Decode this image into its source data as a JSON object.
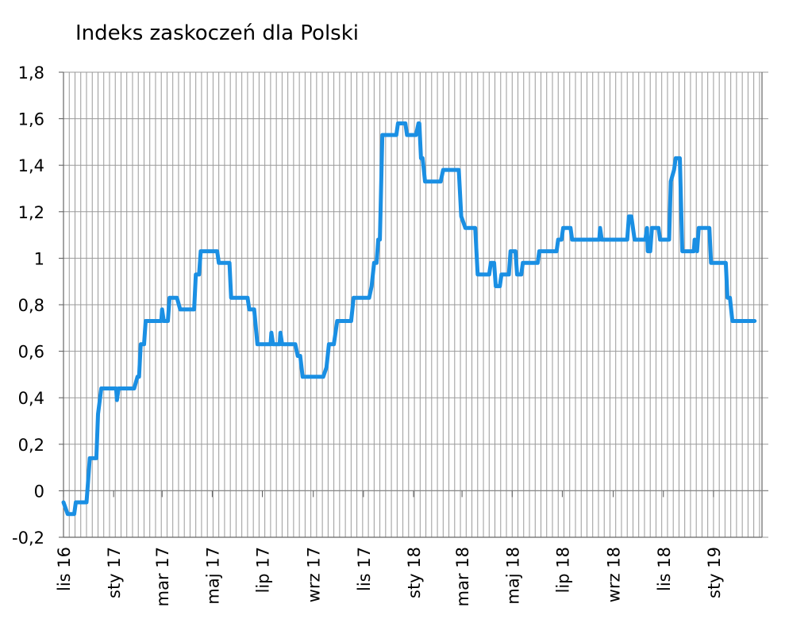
{
  "chart_data": {
    "type": "line",
    "title": "Indeks zaskoczeń dla Polski",
    "xlabel": "",
    "ylabel": "",
    "ylim": [
      -0.2,
      1.8
    ],
    "yticks": [
      "-0,2",
      "0",
      "0,2",
      "0,4",
      "0,6",
      "0,8",
      "1",
      "1,2",
      "1,4",
      "1,6",
      "1,8"
    ],
    "xticks": [
      "lis 16",
      "sty 17",
      "mar 17",
      "maj 17",
      "lip 17",
      "wrz 17",
      "lis 17",
      "sty 18",
      "mar 18",
      "maj 18",
      "lip 18",
      "wrz 18",
      "lis 18",
      "sty 19"
    ],
    "x_range_months": [
      "2016-11",
      "2019-02"
    ],
    "grid": "vertical weekly + horizontal major",
    "line_color": "#1a8fe3",
    "series": [
      {
        "points": [
          [
            "2016-11-01",
            -0.05
          ],
          [
            "2016-11-06",
            -0.1
          ],
          [
            "2016-11-14",
            -0.1
          ],
          [
            "2016-11-16",
            -0.05
          ],
          [
            "2016-11-29",
            -0.05
          ],
          [
            "2016-12-03",
            0.14
          ],
          [
            "2016-12-11",
            0.14
          ],
          [
            "2016-12-13",
            0.33
          ],
          [
            "2016-12-17",
            0.44
          ],
          [
            "2017-01-04",
            0.44
          ],
          [
            "2017-01-05",
            0.39
          ],
          [
            "2017-01-07",
            0.44
          ],
          [
            "2017-01-26",
            0.44
          ],
          [
            "2017-01-30",
            0.49
          ],
          [
            "2017-02-01",
            0.49
          ],
          [
            "2017-02-03",
            0.63
          ],
          [
            "2017-02-07",
            0.63
          ],
          [
            "2017-02-09",
            0.73
          ],
          [
            "2017-02-28",
            0.73
          ],
          [
            "2017-03-01",
            0.78
          ],
          [
            "2017-03-03",
            0.73
          ],
          [
            "2017-03-08",
            0.73
          ],
          [
            "2017-03-10",
            0.83
          ],
          [
            "2017-03-19",
            0.83
          ],
          [
            "2017-03-23",
            0.78
          ],
          [
            "2017-04-09",
            0.78
          ],
          [
            "2017-04-11",
            0.93
          ],
          [
            "2017-04-15",
            0.93
          ],
          [
            "2017-04-17",
            1.03
          ],
          [
            "2017-05-07",
            1.03
          ],
          [
            "2017-05-09",
            0.98
          ],
          [
            "2017-05-22",
            0.98
          ],
          [
            "2017-05-24",
            0.83
          ],
          [
            "2017-06-13",
            0.83
          ],
          [
            "2017-06-15",
            0.78
          ],
          [
            "2017-06-21",
            0.78
          ],
          [
            "2017-06-25",
            0.63
          ],
          [
            "2017-07-11",
            0.63
          ],
          [
            "2017-07-12",
            0.68
          ],
          [
            "2017-07-14",
            0.63
          ],
          [
            "2017-07-22",
            0.63
          ],
          [
            "2017-07-23",
            0.68
          ],
          [
            "2017-07-25",
            0.63
          ],
          [
            "2017-08-10",
            0.63
          ],
          [
            "2017-08-13",
            0.58
          ],
          [
            "2017-08-16",
            0.58
          ],
          [
            "2017-08-19",
            0.49
          ],
          [
            "2017-09-13",
            0.49
          ],
          [
            "2017-09-17",
            0.53
          ],
          [
            "2017-09-20",
            0.63
          ],
          [
            "2017-09-26",
            0.63
          ],
          [
            "2017-09-30",
            0.73
          ],
          [
            "2017-10-17",
            0.73
          ],
          [
            "2017-10-20",
            0.83
          ],
          [
            "2017-11-08",
            0.83
          ],
          [
            "2017-11-11",
            0.88
          ],
          [
            "2017-11-14",
            0.98
          ],
          [
            "2017-11-17",
            0.98
          ],
          [
            "2017-11-19",
            1.08
          ],
          [
            "2017-11-21",
            1.08
          ],
          [
            "2017-11-24",
            1.53
          ],
          [
            "2017-12-11",
            1.53
          ],
          [
            "2017-12-13",
            1.58
          ],
          [
            "2017-12-22",
            1.58
          ],
          [
            "2017-12-24",
            1.53
          ],
          [
            "2018-01-04",
            1.53
          ],
          [
            "2018-01-07",
            1.58
          ],
          [
            "2018-01-08",
            1.58
          ],
          [
            "2018-01-10",
            1.43
          ],
          [
            "2018-01-12",
            1.43
          ],
          [
            "2018-01-15",
            1.33
          ],
          [
            "2018-02-03",
            1.33
          ],
          [
            "2018-02-06",
            1.38
          ],
          [
            "2018-02-25",
            1.38
          ],
          [
            "2018-02-28",
            1.18
          ],
          [
            "2018-03-05",
            1.13
          ],
          [
            "2018-03-17",
            1.13
          ],
          [
            "2018-03-20",
            0.93
          ],
          [
            "2018-04-03",
            0.93
          ],
          [
            "2018-04-05",
            0.98
          ],
          [
            "2018-04-09",
            0.98
          ],
          [
            "2018-04-11",
            0.88
          ],
          [
            "2018-04-16",
            0.88
          ],
          [
            "2018-04-18",
            0.93
          ],
          [
            "2018-04-27",
            0.93
          ],
          [
            "2018-04-29",
            1.03
          ],
          [
            "2018-05-05",
            1.03
          ],
          [
            "2018-05-07",
            0.93
          ],
          [
            "2018-05-12",
            0.93
          ],
          [
            "2018-05-14",
            0.98
          ],
          [
            "2018-06-01",
            0.98
          ],
          [
            "2018-06-03",
            1.03
          ],
          [
            "2018-06-24",
            1.03
          ],
          [
            "2018-06-26",
            1.08
          ],
          [
            "2018-06-30",
            1.08
          ],
          [
            "2018-07-02",
            1.13
          ],
          [
            "2018-07-11",
            1.13
          ],
          [
            "2018-07-13",
            1.08
          ],
          [
            "2018-08-15",
            1.08
          ],
          [
            "2018-08-16",
            1.13
          ],
          [
            "2018-08-18",
            1.08
          ],
          [
            "2018-09-18",
            1.08
          ],
          [
            "2018-09-20",
            1.18
          ],
          [
            "2018-09-23",
            1.18
          ],
          [
            "2018-09-27",
            1.08
          ],
          [
            "2018-10-10",
            1.08
          ],
          [
            "2018-10-12",
            1.13
          ],
          [
            "2018-10-13",
            1.03
          ],
          [
            "2018-10-16",
            1.03
          ],
          [
            "2018-10-18",
            1.13
          ],
          [
            "2018-10-26",
            1.13
          ],
          [
            "2018-10-28",
            1.08
          ],
          [
            "2018-11-08",
            1.08
          ],
          [
            "2018-11-10",
            1.33
          ],
          [
            "2018-11-14",
            1.38
          ],
          [
            "2018-11-16",
            1.43
          ],
          [
            "2018-11-21",
            1.43
          ],
          [
            "2018-11-24",
            1.03
          ],
          [
            "2018-12-08",
            1.03
          ],
          [
            "2018-12-09",
            1.08
          ],
          [
            "2018-12-12",
            1.03
          ],
          [
            "2018-12-14",
            1.13
          ],
          [
            "2018-12-27",
            1.13
          ],
          [
            "2018-12-29",
            0.98
          ],
          [
            "2019-01-16",
            0.98
          ],
          [
            "2019-01-18",
            0.83
          ],
          [
            "2019-01-21",
            0.83
          ],
          [
            "2019-01-24",
            0.73
          ],
          [
            "2019-02-20",
            0.73
          ]
        ]
      }
    ]
  }
}
